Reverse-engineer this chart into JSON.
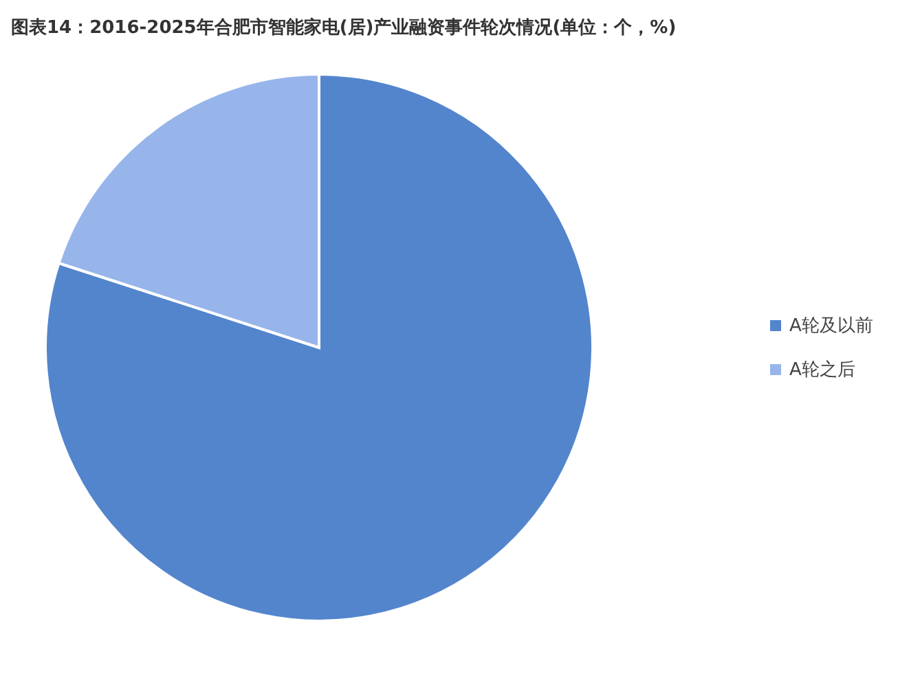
{
  "chart_data": {
    "type": "pie",
    "title": "图表14：2016-2025年合肥市智能家电(居)产业融资事件轮次情况(单位：个，%)",
    "categories": [
      "A轮及以前",
      "A轮之后"
    ],
    "values": [
      80,
      20
    ],
    "colors": [
      "#5385cd",
      "#97b5eb"
    ],
    "legend": "right"
  }
}
